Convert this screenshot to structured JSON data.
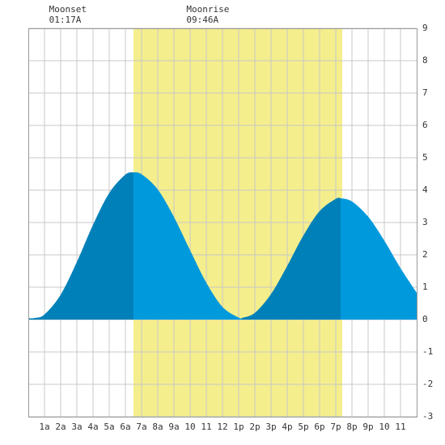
{
  "chart_data": {
    "type": "tide",
    "annotations": [
      {
        "title": "Moonset",
        "time": "01:17A",
        "x": 1.28
      },
      {
        "title": "Moonrise",
        "time": "09:46A",
        "x": 9.77
      }
    ],
    "daylight": [
      6.5,
      19.4
    ],
    "daylight_color": "#f5ee8c",
    "rising_color": "#0080b8",
    "falling_color": "#0099dc",
    "x": [
      0,
      0.4,
      1,
      2,
      3,
      4,
      5,
      6,
      6.5,
      7,
      8,
      9,
      10,
      11,
      12,
      13,
      13.2,
      14,
      15,
      16,
      17,
      18,
      19,
      19.3,
      20,
      21,
      22,
      23,
      24
    ],
    "values": [
      0.04,
      0.05,
      0.16,
      0.77,
      1.78,
      2.93,
      3.91,
      4.48,
      4.55,
      4.49,
      4.02,
      3.17,
      2.14,
      1.14,
      0.39,
      0.06,
      0.05,
      0.21,
      0.79,
      1.66,
      2.6,
      3.35,
      3.73,
      3.75,
      3.65,
      3.18,
      2.44,
      1.59,
      0.83
    ],
    "xlim": [
      0,
      24
    ],
    "xticks": [
      {
        "value": 1,
        "label": "1a"
      },
      {
        "value": 2,
        "label": "2a"
      },
      {
        "value": 3,
        "label": "3a"
      },
      {
        "value": 4,
        "label": "4a"
      },
      {
        "value": 5,
        "label": "5a"
      },
      {
        "value": 6,
        "label": "6a"
      },
      {
        "value": 7,
        "label": "7a"
      },
      {
        "value": 8,
        "label": "8a"
      },
      {
        "value": 9,
        "label": "9a"
      },
      10,
      11,
      12,
      {
        "value": 13,
        "label": "1p"
      },
      {
        "value": 14,
        "label": "2p"
      },
      {
        "value": 15,
        "label": "3p"
      },
      {
        "value": 16,
        "label": "4p"
      },
      {
        "value": 17,
        "label": "5p"
      },
      {
        "value": 18,
        "label": "6p"
      },
      {
        "value": 19,
        "label": "7p"
      },
      {
        "value": 20,
        "label": "8p"
      },
      {
        "value": 21,
        "label": "9p"
      },
      {
        "value": 22,
        "label": "10"
      },
      {
        "value": 23,
        "label": "11"
      }
    ],
    "ylim": [
      -3,
      9
    ],
    "yticks": [
      -3,
      -2,
      -1,
      0,
      1,
      2,
      3,
      4,
      5,
      6,
      7,
      8,
      9
    ],
    "grid": true
  }
}
